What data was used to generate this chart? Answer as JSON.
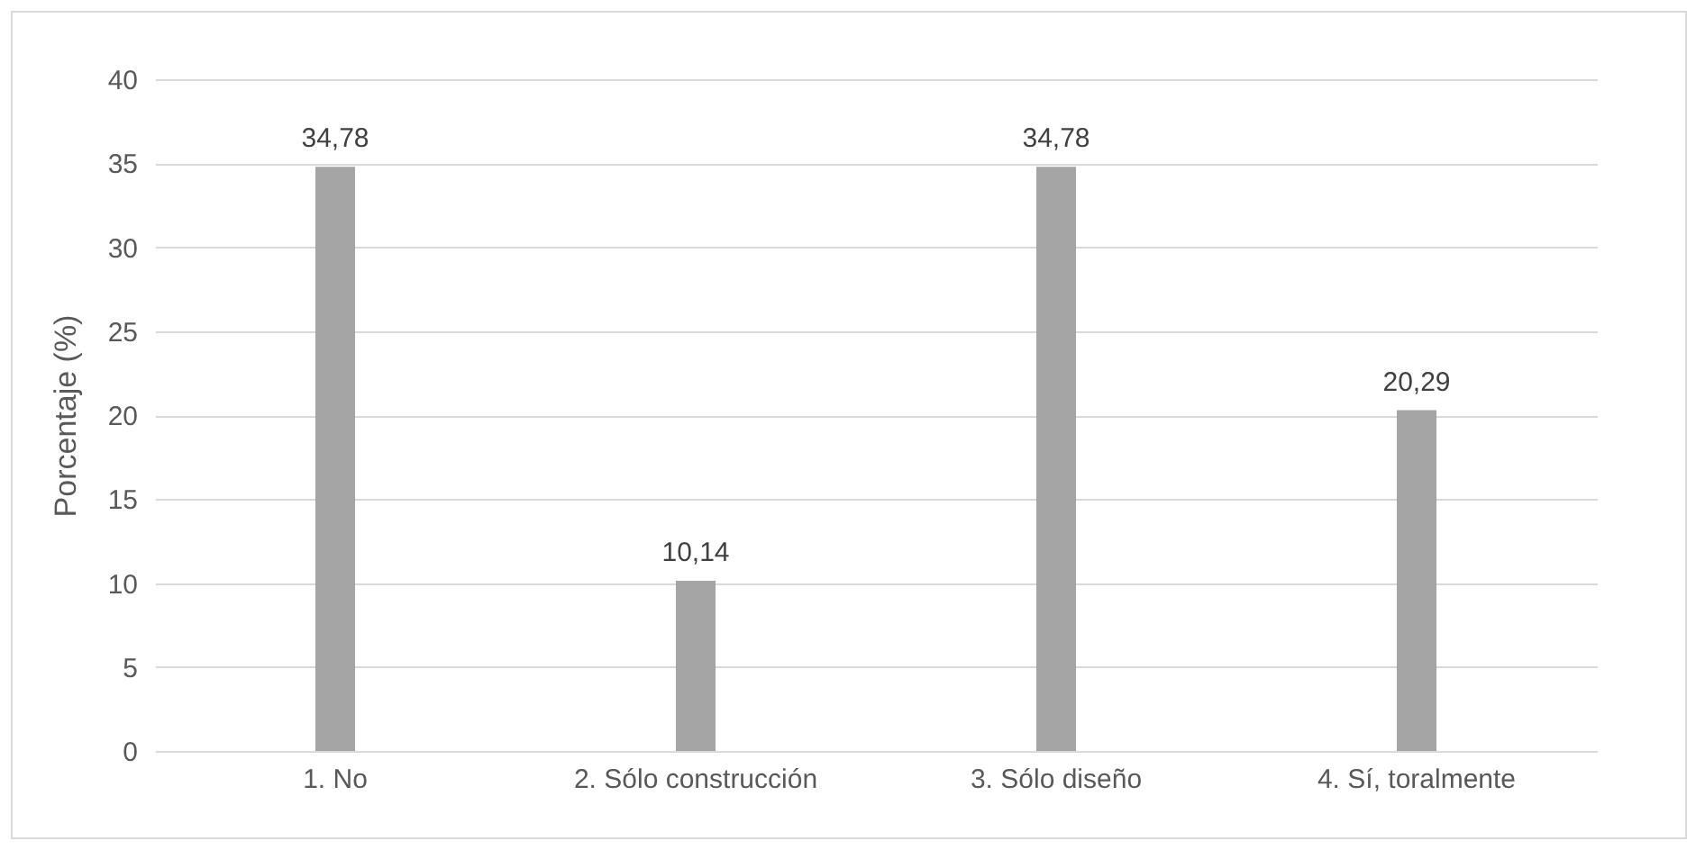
{
  "chart_data": {
    "type": "bar",
    "ylabel": "Porcentaje (%)",
    "categories": [
      "1. No",
      "2. Sólo construcción",
      "3. Sólo diseño",
      "4. Sí, toralmente"
    ],
    "values": [
      34.78,
      10.14,
      34.78,
      20.29
    ],
    "value_labels": [
      "34,78",
      "10,14",
      "34,78",
      "20,29"
    ],
    "color": "#a5a5a5",
    "ylim": [
      0,
      40
    ],
    "yticks": [
      0,
      5,
      10,
      15,
      20,
      25,
      30,
      35,
      40
    ],
    "grid": "y"
  }
}
